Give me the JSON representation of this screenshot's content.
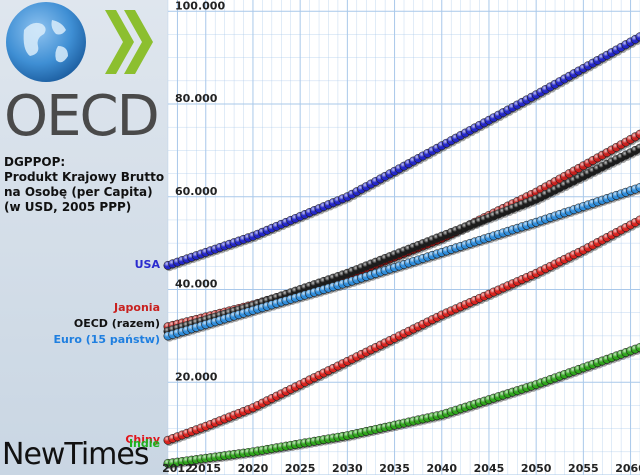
{
  "logo": {
    "text": "OECD",
    "colors": {
      "globe": "#2f7cc4",
      "chevron": "#8cbf2f",
      "text": "#4a4a4a"
    }
  },
  "title_lines": [
    "DGPPOP:",
    "Produkt Krajowy Brutto",
    "na Osobę (per Capita)",
    "(w USD, 2005 PPP)"
  ],
  "watermark": "NewTimes",
  "colors": {
    "background_left": "#d3dde8",
    "plot_background": "#ffffff",
    "grid": "#a9c8ea"
  },
  "chart_data": {
    "type": "scatter",
    "title": "DGPPOP: Produkt Krajowy Brutto na Osobę (per Capita) (w USD, 2005 PPP)",
    "xlim": [
      2011,
      2061
    ],
    "ylim": [
      0,
      102000
    ],
    "x_ticks": [
      2012,
      2015,
      2020,
      2025,
      2030,
      2035,
      2040,
      2045,
      2050,
      2055,
      2060
    ],
    "y_ticks": [
      {
        "value": 20000,
        "label": "20.000"
      },
      {
        "value": 40000,
        "label": "40.000"
      },
      {
        "value": 60000,
        "label": "60.000"
      },
      {
        "value": 80000,
        "label": "80.000"
      },
      {
        "value": 100000,
        "label": "100.000"
      }
    ],
    "grid": true,
    "series": [
      {
        "name": "USA",
        "color": "#2326c9",
        "label_color": "#2a2bcf",
        "points": [
          [
            2011,
            45200
          ],
          [
            2020,
            51500
          ],
          [
            2030,
            60000
          ],
          [
            2040,
            71000
          ],
          [
            2050,
            82000
          ],
          [
            2061,
            94500
          ]
        ]
      },
      {
        "name": "Japonia",
        "color": "#c8201e",
        "label_color": "#c8201e",
        "points": [
          [
            2011,
            32000
          ],
          [
            2020,
            36700
          ],
          [
            2030,
            43000
          ],
          [
            2040,
            51000
          ],
          [
            2050,
            61000
          ],
          [
            2061,
            73500
          ]
        ]
      },
      {
        "name": "OECD (razem)",
        "color": "#1b1b1b",
        "label_color": "#111111",
        "points": [
          [
            2011,
            31000
          ],
          [
            2020,
            36500
          ],
          [
            2030,
            43500
          ],
          [
            2040,
            51500
          ],
          [
            2050,
            59500
          ],
          [
            2061,
            70500
          ]
        ]
      },
      {
        "name": "Euro (15 państw)",
        "color": "#2f8ddb",
        "label_color": "#1f7fe0",
        "points": [
          [
            2011,
            30000
          ],
          [
            2020,
            35500
          ],
          [
            2030,
            41500
          ],
          [
            2040,
            48000
          ],
          [
            2050,
            54500
          ],
          [
            2061,
            62000
          ]
        ]
      },
      {
        "name": "Chiny",
        "color": "#d8231f",
        "label_color": "#e0161b",
        "points": [
          [
            2011,
            7500
          ],
          [
            2015,
            10500
          ],
          [
            2020,
            14500
          ],
          [
            2025,
            19500
          ],
          [
            2030,
            24500
          ],
          [
            2035,
            29500
          ],
          [
            2040,
            34500
          ],
          [
            2045,
            39000
          ],
          [
            2050,
            43500
          ],
          [
            2055,
            48500
          ],
          [
            2061,
            55000
          ]
        ]
      },
      {
        "name": "Indie",
        "color": "#2fa51c",
        "label_color": "#1fb11f",
        "points": [
          [
            2011,
            2500
          ],
          [
            2020,
            5000
          ],
          [
            2030,
            8500
          ],
          [
            2040,
            13000
          ],
          [
            2050,
            19500
          ],
          [
            2061,
            27500
          ]
        ]
      }
    ]
  }
}
